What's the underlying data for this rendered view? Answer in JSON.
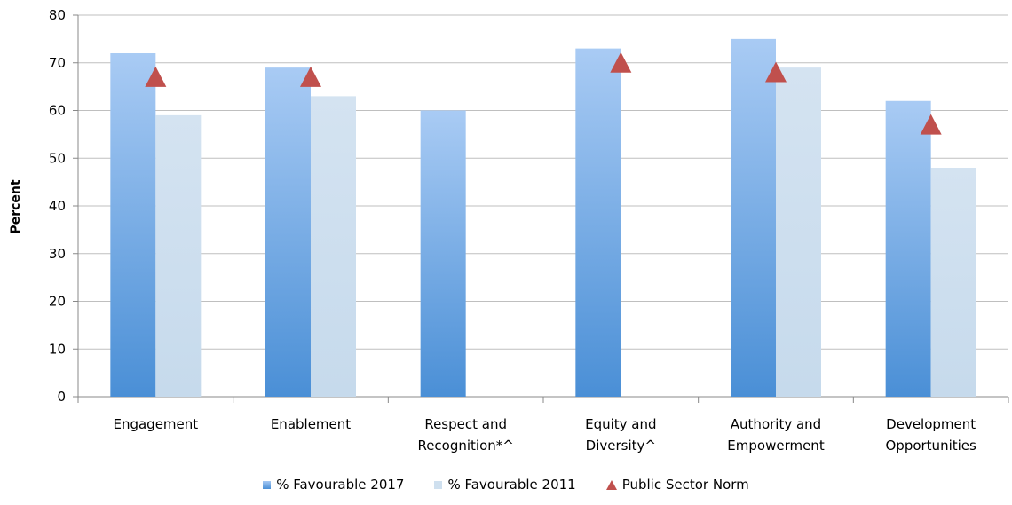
{
  "chart_data": {
    "type": "bar",
    "title": "",
    "ylabel": "Percent",
    "xlabel": "",
    "ylim": [
      0,
      80
    ],
    "yticks": [
      0,
      10,
      20,
      30,
      40,
      50,
      60,
      70,
      80
    ],
    "grid": true,
    "legend_position": "bottom",
    "categories": [
      [
        "Engagement"
      ],
      [
        "Enablement"
      ],
      [
        "Respect and",
        "Recognition*^"
      ],
      [
        "Equity and",
        "Diversity^"
      ],
      [
        "Authority and",
        "Empowerment"
      ],
      [
        "Development",
        "Opportunities"
      ]
    ],
    "series": [
      {
        "name": "% Favourable 2017",
        "kind": "bar",
        "color": "#4a8fd6",
        "values": [
          72,
          69,
          60,
          73,
          75,
          62
        ]
      },
      {
        "name": "% Favourable 2011",
        "kind": "bar",
        "color": "#cfe0ef",
        "values": [
          59,
          63,
          null,
          null,
          69,
          48
        ]
      },
      {
        "name": "Public Sector Norm",
        "kind": "marker",
        "marker": "triangle",
        "color": "#c0504d",
        "values": [
          67,
          67,
          null,
          70,
          68,
          57
        ]
      }
    ]
  }
}
